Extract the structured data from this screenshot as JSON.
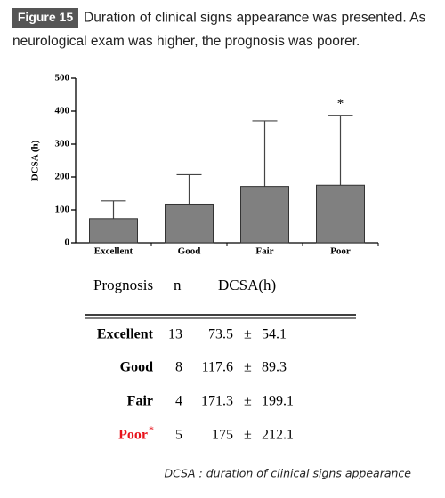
{
  "caption": {
    "label": "Figure 15",
    "text": "Duration of clinical signs appearance was presented. As neurological exam was higher, the prognosis was poorer."
  },
  "chart_data": {
    "type": "bar",
    "categories": [
      "Excellent",
      "Good",
      "Fair",
      "Poor"
    ],
    "values": [
      73.5,
      117.6,
      171.3,
      175
    ],
    "errors": [
      54.1,
      89.3,
      199.1,
      212.1
    ],
    "color": "#808080",
    "y_label": "DCSA (h)",
    "ylim": [
      0,
      500
    ],
    "yticks": [
      0,
      100,
      200,
      300,
      400,
      500
    ],
    "annotation": {
      "text": "*",
      "category": "Poor"
    }
  },
  "table": {
    "headers": [
      "Prognosis",
      "n",
      "DCSA(h)"
    ],
    "n": [
      13,
      8,
      4,
      5
    ],
    "plus_minus": "±",
    "marker": "*",
    "marker_color": "#e8141c"
  },
  "footnote": "DCSA : duration of clinical signs appearance"
}
